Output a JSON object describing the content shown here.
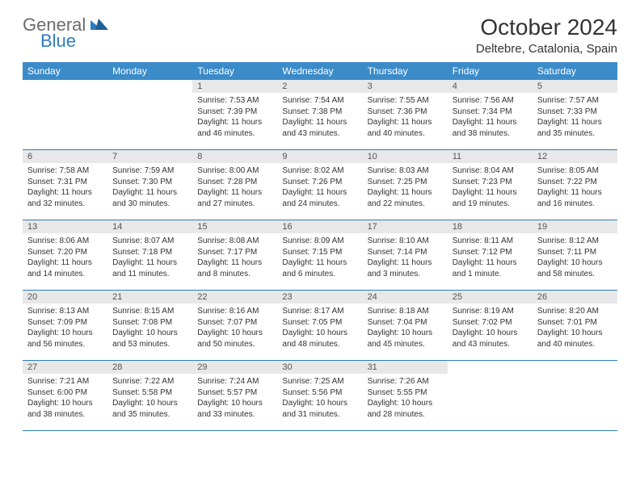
{
  "logo": {
    "text1": "General",
    "text2": "Blue"
  },
  "title": "October 2024",
  "location": "Deltebre, Catalonia, Spain",
  "daynames": [
    "Sunday",
    "Monday",
    "Tuesday",
    "Wednesday",
    "Thursday",
    "Friday",
    "Saturday"
  ],
  "colors": {
    "header_bg": "#3b8bc9",
    "daynum_bg": "#e8e8e8",
    "rule": "#2f7bbf",
    "logo_gray": "#6b6b6b",
    "logo_blue": "#2f7bbf"
  },
  "weeks": [
    [
      null,
      null,
      {
        "n": "1",
        "sr": "Sunrise: 7:53 AM",
        "ss": "Sunset: 7:39 PM",
        "dl1": "Daylight: 11 hours",
        "dl2": "and 46 minutes."
      },
      {
        "n": "2",
        "sr": "Sunrise: 7:54 AM",
        "ss": "Sunset: 7:38 PM",
        "dl1": "Daylight: 11 hours",
        "dl2": "and 43 minutes."
      },
      {
        "n": "3",
        "sr": "Sunrise: 7:55 AM",
        "ss": "Sunset: 7:36 PM",
        "dl1": "Daylight: 11 hours",
        "dl2": "and 40 minutes."
      },
      {
        "n": "4",
        "sr": "Sunrise: 7:56 AM",
        "ss": "Sunset: 7:34 PM",
        "dl1": "Daylight: 11 hours",
        "dl2": "and 38 minutes."
      },
      {
        "n": "5",
        "sr": "Sunrise: 7:57 AM",
        "ss": "Sunset: 7:33 PM",
        "dl1": "Daylight: 11 hours",
        "dl2": "and 35 minutes."
      }
    ],
    [
      {
        "n": "6",
        "sr": "Sunrise: 7:58 AM",
        "ss": "Sunset: 7:31 PM",
        "dl1": "Daylight: 11 hours",
        "dl2": "and 32 minutes."
      },
      {
        "n": "7",
        "sr": "Sunrise: 7:59 AM",
        "ss": "Sunset: 7:30 PM",
        "dl1": "Daylight: 11 hours",
        "dl2": "and 30 minutes."
      },
      {
        "n": "8",
        "sr": "Sunrise: 8:00 AM",
        "ss": "Sunset: 7:28 PM",
        "dl1": "Daylight: 11 hours",
        "dl2": "and 27 minutes."
      },
      {
        "n": "9",
        "sr": "Sunrise: 8:02 AM",
        "ss": "Sunset: 7:26 PM",
        "dl1": "Daylight: 11 hours",
        "dl2": "and 24 minutes."
      },
      {
        "n": "10",
        "sr": "Sunrise: 8:03 AM",
        "ss": "Sunset: 7:25 PM",
        "dl1": "Daylight: 11 hours",
        "dl2": "and 22 minutes."
      },
      {
        "n": "11",
        "sr": "Sunrise: 8:04 AM",
        "ss": "Sunset: 7:23 PM",
        "dl1": "Daylight: 11 hours",
        "dl2": "and 19 minutes."
      },
      {
        "n": "12",
        "sr": "Sunrise: 8:05 AM",
        "ss": "Sunset: 7:22 PM",
        "dl1": "Daylight: 11 hours",
        "dl2": "and 16 minutes."
      }
    ],
    [
      {
        "n": "13",
        "sr": "Sunrise: 8:06 AM",
        "ss": "Sunset: 7:20 PM",
        "dl1": "Daylight: 11 hours",
        "dl2": "and 14 minutes."
      },
      {
        "n": "14",
        "sr": "Sunrise: 8:07 AM",
        "ss": "Sunset: 7:18 PM",
        "dl1": "Daylight: 11 hours",
        "dl2": "and 11 minutes."
      },
      {
        "n": "15",
        "sr": "Sunrise: 8:08 AM",
        "ss": "Sunset: 7:17 PM",
        "dl1": "Daylight: 11 hours",
        "dl2": "and 8 minutes."
      },
      {
        "n": "16",
        "sr": "Sunrise: 8:09 AM",
        "ss": "Sunset: 7:15 PM",
        "dl1": "Daylight: 11 hours",
        "dl2": "and 6 minutes."
      },
      {
        "n": "17",
        "sr": "Sunrise: 8:10 AM",
        "ss": "Sunset: 7:14 PM",
        "dl1": "Daylight: 11 hours",
        "dl2": "and 3 minutes."
      },
      {
        "n": "18",
        "sr": "Sunrise: 8:11 AM",
        "ss": "Sunset: 7:12 PM",
        "dl1": "Daylight: 11 hours",
        "dl2": "and 1 minute."
      },
      {
        "n": "19",
        "sr": "Sunrise: 8:12 AM",
        "ss": "Sunset: 7:11 PM",
        "dl1": "Daylight: 10 hours",
        "dl2": "and 58 minutes."
      }
    ],
    [
      {
        "n": "20",
        "sr": "Sunrise: 8:13 AM",
        "ss": "Sunset: 7:09 PM",
        "dl1": "Daylight: 10 hours",
        "dl2": "and 56 minutes."
      },
      {
        "n": "21",
        "sr": "Sunrise: 8:15 AM",
        "ss": "Sunset: 7:08 PM",
        "dl1": "Daylight: 10 hours",
        "dl2": "and 53 minutes."
      },
      {
        "n": "22",
        "sr": "Sunrise: 8:16 AM",
        "ss": "Sunset: 7:07 PM",
        "dl1": "Daylight: 10 hours",
        "dl2": "and 50 minutes."
      },
      {
        "n": "23",
        "sr": "Sunrise: 8:17 AM",
        "ss": "Sunset: 7:05 PM",
        "dl1": "Daylight: 10 hours",
        "dl2": "and 48 minutes."
      },
      {
        "n": "24",
        "sr": "Sunrise: 8:18 AM",
        "ss": "Sunset: 7:04 PM",
        "dl1": "Daylight: 10 hours",
        "dl2": "and 45 minutes."
      },
      {
        "n": "25",
        "sr": "Sunrise: 8:19 AM",
        "ss": "Sunset: 7:02 PM",
        "dl1": "Daylight: 10 hours",
        "dl2": "and 43 minutes."
      },
      {
        "n": "26",
        "sr": "Sunrise: 8:20 AM",
        "ss": "Sunset: 7:01 PM",
        "dl1": "Daylight: 10 hours",
        "dl2": "and 40 minutes."
      }
    ],
    [
      {
        "n": "27",
        "sr": "Sunrise: 7:21 AM",
        "ss": "Sunset: 6:00 PM",
        "dl1": "Daylight: 10 hours",
        "dl2": "and 38 minutes."
      },
      {
        "n": "28",
        "sr": "Sunrise: 7:22 AM",
        "ss": "Sunset: 5:58 PM",
        "dl1": "Daylight: 10 hours",
        "dl2": "and 35 minutes."
      },
      {
        "n": "29",
        "sr": "Sunrise: 7:24 AM",
        "ss": "Sunset: 5:57 PM",
        "dl1": "Daylight: 10 hours",
        "dl2": "and 33 minutes."
      },
      {
        "n": "30",
        "sr": "Sunrise: 7:25 AM",
        "ss": "Sunset: 5:56 PM",
        "dl1": "Daylight: 10 hours",
        "dl2": "and 31 minutes."
      },
      {
        "n": "31",
        "sr": "Sunrise: 7:26 AM",
        "ss": "Sunset: 5:55 PM",
        "dl1": "Daylight: 10 hours",
        "dl2": "and 28 minutes."
      },
      null,
      null
    ]
  ]
}
